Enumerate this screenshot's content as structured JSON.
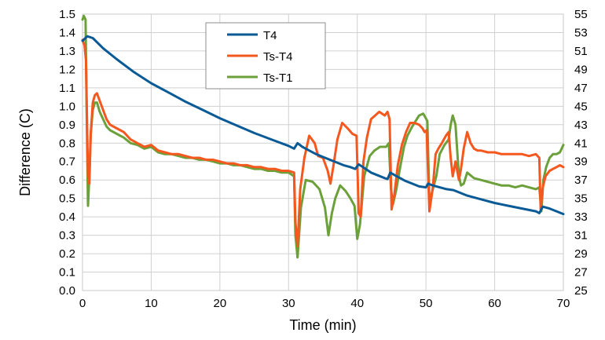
{
  "chart_data": {
    "type": "line",
    "title": "",
    "xlabel": "Time (min)",
    "ylabel": "Difference  (C)",
    "y2label": "",
    "xlim": [
      0,
      70
    ],
    "ylim": [
      0,
      1.5
    ],
    "y2lim": [
      25,
      55
    ],
    "xticks": [
      0,
      10,
      20,
      30,
      40,
      50,
      60,
      70
    ],
    "yticks": [
      0.0,
      0.1,
      0.2,
      0.3,
      0.4,
      0.5,
      0.6,
      0.7,
      0.8,
      0.9,
      1.0,
      1.1,
      1.2,
      1.3,
      1.4,
      1.5
    ],
    "y2ticks": [
      25,
      27,
      29,
      31,
      33,
      35,
      37,
      39,
      41,
      43,
      45,
      47,
      49,
      51,
      53,
      55
    ],
    "ytick_labels": [
      "0.0",
      "0.1",
      "0.2",
      "0.3",
      "0.4",
      "0.5",
      "0.6",
      "0.7",
      "0.8",
      "0.9",
      "1.0",
      "1.1",
      "1.2",
      "1.3",
      "1.4",
      "1.5"
    ],
    "grid": true,
    "legend_position": "top-center",
    "series": [
      {
        "name": "T4",
        "axis": "right",
        "color": "#0a5a96",
        "x": [
          0,
          0.7,
          1.5,
          3,
          5,
          7.5,
          10,
          12.5,
          15,
          17.5,
          20,
          22.5,
          25,
          27.5,
          30,
          30.8,
          31.3,
          32,
          33,
          34,
          35,
          36,
          37,
          38,
          39,
          39.7,
          40.2,
          41,
          42,
          43,
          44,
          44.4,
          44.8,
          45.5,
          47,
          48,
          49,
          50,
          50.3,
          51,
          52,
          53,
          54,
          55,
          56,
          58,
          60,
          62,
          64,
          66,
          66.5,
          67,
          68,
          69,
          70
        ],
        "y": [
          52.1,
          52.6,
          52.4,
          51.3,
          50.1,
          48.7,
          47.5,
          46.5,
          45.5,
          44.6,
          43.7,
          42.9,
          42.1,
          41.4,
          40.7,
          40.4,
          41.0,
          40.6,
          40.2,
          39.8,
          39.5,
          39.2,
          38.9,
          38.6,
          38.4,
          38.2,
          38.7,
          38.3,
          37.8,
          37.5,
          37.2,
          37.1,
          37.8,
          37.5,
          36.9,
          36.6,
          36.3,
          36.2,
          36.6,
          36.4,
          36.2,
          36.0,
          35.9,
          35.6,
          35.3,
          34.9,
          34.5,
          34.2,
          33.9,
          33.6,
          33.4,
          34.1,
          33.9,
          33.6,
          33.3
        ]
      },
      {
        "name": "Ts-T4",
        "axis": "left",
        "color": "#f4581f",
        "x": [
          0,
          0.3,
          0.5,
          0.8,
          1.0,
          1.2,
          1.5,
          1.8,
          2.1,
          2.5,
          3,
          3.5,
          4,
          5,
          6,
          7,
          8,
          9,
          10,
          11,
          12,
          13,
          14,
          15,
          16,
          17,
          18,
          19,
          20,
          21,
          22,
          23,
          24,
          25,
          26,
          27,
          28,
          29,
          30,
          30.8,
          31.0,
          31.3,
          31.7,
          32.3,
          33,
          33.8,
          34.3,
          35,
          35.7,
          36.1,
          36.5,
          37.1,
          37.8,
          38.6,
          39.3,
          39.9,
          40.2,
          40.5,
          40.9,
          41.4,
          42,
          42.6,
          43.2,
          44,
          44.4,
          44.7,
          45.0,
          45.4,
          45.9,
          46.5,
          47.1,
          47.7,
          48.3,
          49.0,
          49.5,
          49.8,
          50.1,
          50.5,
          51.0,
          51.4,
          51.8,
          52.3,
          52.9,
          53.3,
          53.6,
          53.9,
          54.3,
          54.8,
          55.1,
          55.5,
          56,
          56.5,
          57,
          57.5,
          58,
          59,
          60,
          61,
          62,
          63,
          64,
          65,
          66,
          66.5,
          66.7,
          67.0,
          67.4,
          68,
          68.5,
          69,
          69.5,
          70
        ],
        "y": [
          1.36,
          1.33,
          1.25,
          0.62,
          0.58,
          0.85,
          1.02,
          1.06,
          1.07,
          1.03,
          0.98,
          0.93,
          0.9,
          0.88,
          0.86,
          0.82,
          0.8,
          0.78,
          0.79,
          0.76,
          0.75,
          0.74,
          0.74,
          0.73,
          0.72,
          0.72,
          0.71,
          0.71,
          0.7,
          0.69,
          0.69,
          0.68,
          0.68,
          0.67,
          0.67,
          0.66,
          0.66,
          0.65,
          0.65,
          0.64,
          0.37,
          0.24,
          0.55,
          0.72,
          0.84,
          0.8,
          0.73,
          0.72,
          0.65,
          0.58,
          0.67,
          0.82,
          0.91,
          0.88,
          0.85,
          0.84,
          0.42,
          0.4,
          0.7,
          0.83,
          0.93,
          0.95,
          0.97,
          0.95,
          0.97,
          0.93,
          0.44,
          0.52,
          0.68,
          0.79,
          0.86,
          0.91,
          0.91,
          0.9,
          0.88,
          0.86,
          0.87,
          0.43,
          0.56,
          0.74,
          0.77,
          0.8,
          0.84,
          0.86,
          0.72,
          0.62,
          0.7,
          0.6,
          0.66,
          0.77,
          0.86,
          0.8,
          0.77,
          0.76,
          0.76,
          0.75,
          0.75,
          0.74,
          0.74,
          0.74,
          0.74,
          0.73,
          0.74,
          0.72,
          0.44,
          0.56,
          0.62,
          0.65,
          0.66,
          0.67,
          0.68,
          0.67
        ]
      },
      {
        "name": "Ts-T1",
        "axis": "left",
        "color": "#6ba03a",
        "x": [
          0,
          0.2,
          0.45,
          0.6,
          0.8,
          1.0,
          1.2,
          1.5,
          1.8,
          2.1,
          2.5,
          3,
          3.5,
          4,
          5,
          6,
          7,
          8,
          9,
          10,
          11,
          12,
          13,
          14,
          15,
          16,
          17,
          18,
          19,
          20,
          21,
          22,
          23,
          24,
          25,
          26,
          27,
          28,
          29,
          30,
          30.8,
          31.0,
          31.3,
          31.8,
          32.5,
          33.5,
          34.5,
          35.3,
          35.8,
          36.3,
          36.8,
          37.5,
          38.3,
          39.0,
          39.6,
          40.0,
          40.4,
          41.0,
          41.8,
          42.5,
          43.3,
          44.2,
          44.6,
          44.9,
          45.2,
          45.7,
          46.2,
          46.8,
          47.3,
          48,
          49,
          49.6,
          49.9,
          50.2,
          50.5,
          51.0,
          51.5,
          52,
          52.7,
          53.3,
          53.6,
          53.9,
          54.3,
          54.8,
          55.1,
          55.5,
          56,
          57,
          58,
          59,
          60,
          61,
          62,
          63,
          64,
          65,
          66,
          66.5,
          66.8,
          67.1,
          67.5,
          68,
          68.5,
          69,
          69.5,
          70
        ],
        "y": [
          1.47,
          1.49,
          1.47,
          1.0,
          0.46,
          0.62,
          0.85,
          0.98,
          1.02,
          1.02,
          0.97,
          0.93,
          0.89,
          0.87,
          0.85,
          0.83,
          0.8,
          0.79,
          0.77,
          0.78,
          0.75,
          0.74,
          0.74,
          0.73,
          0.72,
          0.72,
          0.71,
          0.71,
          0.7,
          0.69,
          0.69,
          0.68,
          0.68,
          0.67,
          0.66,
          0.66,
          0.65,
          0.65,
          0.64,
          0.64,
          0.62,
          0.3,
          0.18,
          0.45,
          0.6,
          0.59,
          0.55,
          0.45,
          0.3,
          0.42,
          0.5,
          0.57,
          0.54,
          0.5,
          0.46,
          0.28,
          0.36,
          0.62,
          0.73,
          0.76,
          0.78,
          0.78,
          0.8,
          0.55,
          0.47,
          0.55,
          0.66,
          0.78,
          0.84,
          0.89,
          0.95,
          0.96,
          0.94,
          0.92,
          0.48,
          0.55,
          0.62,
          0.74,
          0.79,
          0.82,
          0.9,
          0.95,
          0.9,
          0.62,
          0.57,
          0.58,
          0.64,
          0.61,
          0.6,
          0.59,
          0.58,
          0.57,
          0.57,
          0.56,
          0.57,
          0.56,
          0.55,
          0.56,
          0.43,
          0.6,
          0.67,
          0.72,
          0.74,
          0.74,
          0.75,
          0.79
        ]
      }
    ]
  }
}
